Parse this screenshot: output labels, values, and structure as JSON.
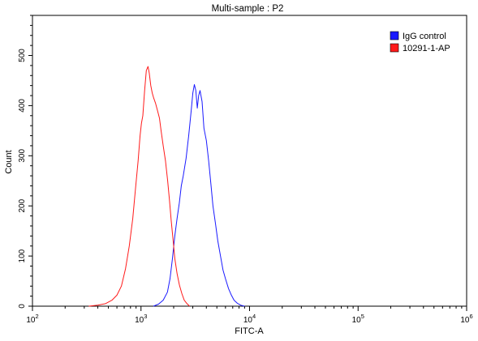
{
  "chart_data": {
    "type": "line",
    "title": "Multi-sample : P2",
    "xlabel": "FITC-A",
    "ylabel": "Count",
    "x_scale": "log",
    "xlim": [
      100,
      1000000
    ],
    "ylim": [
      0,
      580
    ],
    "x_ticks": [
      {
        "value": 100,
        "base": "10",
        "exp": "2"
      },
      {
        "value": 1000,
        "base": "10",
        "exp": "3"
      },
      {
        "value": 10000,
        "base": "10",
        "exp": "4"
      },
      {
        "value": 100000,
        "base": "10",
        "exp": "5"
      },
      {
        "value": 1000000,
        "base": "10",
        "exp": "6"
      }
    ],
    "y_ticks": [
      0,
      100,
      200,
      300,
      400,
      500
    ],
    "grid": false,
    "legend_position": "top-right",
    "series": [
      {
        "name": "IgG control",
        "color": "#1a1aff",
        "points": [
          [
            1300,
            0
          ],
          [
            1450,
            4
          ],
          [
            1600,
            12
          ],
          [
            1750,
            28
          ],
          [
            1850,
            55
          ],
          [
            1950,
            95
          ],
          [
            2050,
            140
          ],
          [
            2150,
            175
          ],
          [
            2250,
            205
          ],
          [
            2350,
            240
          ],
          [
            2450,
            260
          ],
          [
            2600,
            295
          ],
          [
            2750,
            340
          ],
          [
            2900,
            390
          ],
          [
            3000,
            425
          ],
          [
            3100,
            442
          ],
          [
            3200,
            430
          ],
          [
            3300,
            395
          ],
          [
            3400,
            420
          ],
          [
            3500,
            430
          ],
          [
            3650,
            408
          ],
          [
            3800,
            355
          ],
          [
            4000,
            330
          ],
          [
            4200,
            290
          ],
          [
            4400,
            245
          ],
          [
            4600,
            200
          ],
          [
            4850,
            165
          ],
          [
            5100,
            130
          ],
          [
            5400,
            100
          ],
          [
            5700,
            72
          ],
          [
            6000,
            55
          ],
          [
            6400,
            35
          ],
          [
            6800,
            22
          ],
          [
            7200,
            12
          ],
          [
            7700,
            6
          ],
          [
            8300,
            2
          ],
          [
            9000,
            0
          ]
        ]
      },
      {
        "name": "10291-1-AP",
        "color": "#ff1a1a",
        "points": [
          [
            330,
            0
          ],
          [
            400,
            2
          ],
          [
            470,
            5
          ],
          [
            540,
            12
          ],
          [
            600,
            22
          ],
          [
            660,
            40
          ],
          [
            720,
            75
          ],
          [
            780,
            120
          ],
          [
            840,
            175
          ],
          [
            890,
            235
          ],
          [
            940,
            290
          ],
          [
            980,
            340
          ],
          [
            1010,
            365
          ],
          [
            1040,
            380
          ],
          [
            1080,
            430
          ],
          [
            1120,
            470
          ],
          [
            1160,
            478
          ],
          [
            1190,
            465
          ],
          [
            1230,
            440
          ],
          [
            1270,
            425
          ],
          [
            1310,
            415
          ],
          [
            1360,
            405
          ],
          [
            1420,
            390
          ],
          [
            1480,
            375
          ],
          [
            1530,
            350
          ],
          [
            1600,
            320
          ],
          [
            1680,
            290
          ],
          [
            1760,
            250
          ],
          [
            1830,
            210
          ],
          [
            1900,
            170
          ],
          [
            1980,
            130
          ],
          [
            2050,
            95
          ],
          [
            2150,
            65
          ],
          [
            2260,
            42
          ],
          [
            2380,
            25
          ],
          [
            2500,
            12
          ],
          [
            2650,
            5
          ],
          [
            2800,
            0
          ]
        ]
      }
    ]
  }
}
